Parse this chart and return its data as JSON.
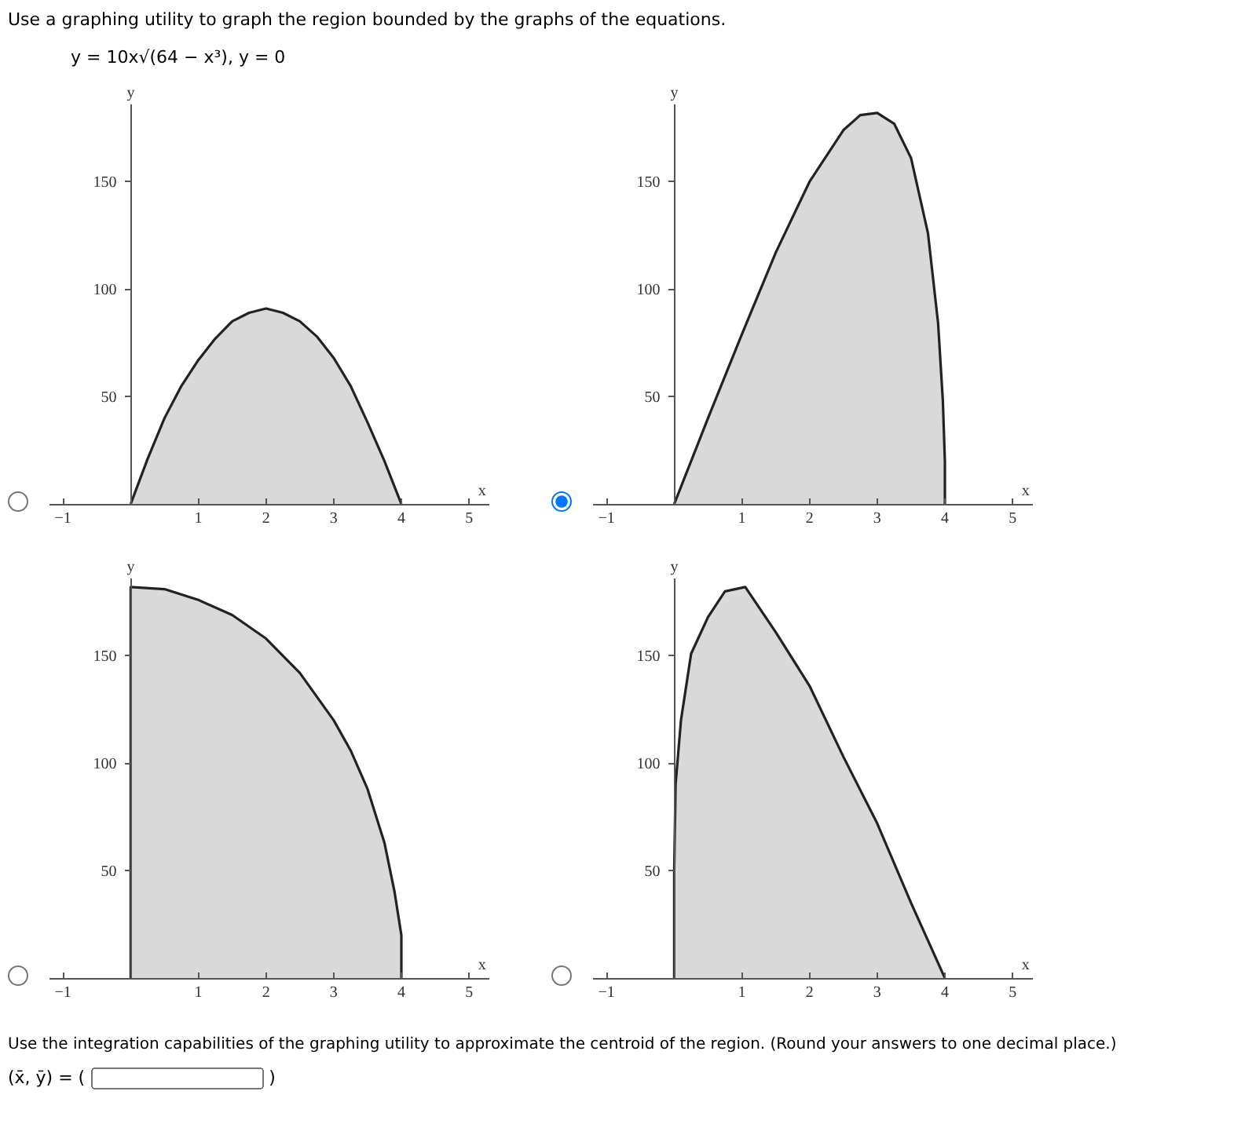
{
  "chart_data": [
    {
      "type": "area",
      "title": "Use a graphing utility to graph the region bounded by the graphs of the equations.",
      "subtitle": "y = 10x√(64 − x³), y = 0",
      "xlabel": "x",
      "ylabel": "y",
      "xlim": [
        -1.2,
        5.3
      ],
      "ylim": [
        0,
        186
      ],
      "xticks": [
        -1,
        1,
        2,
        3,
        4,
        5
      ],
      "yticks": [
        50,
        100,
        150
      ],
      "grid": false,
      "color": "#d9d9d9",
      "x": [
        0,
        0.25,
        0.5,
        0.75,
        1,
        1.25,
        1.5,
        1.75,
        2,
        2.25,
        2.5,
        2.75,
        3,
        3.25,
        3.5,
        3.75,
        4
      ],
      "values": [
        0,
        21,
        40,
        55,
        67,
        77,
        85,
        89,
        91,
        89,
        85,
        78,
        68,
        55,
        38,
        20,
        0
      ]
    },
    {
      "type": "area",
      "xlabel": "x",
      "ylabel": "y",
      "xlim": [
        -1.2,
        5.3
      ],
      "ylim": [
        0,
        186
      ],
      "xticks": [
        -1,
        1,
        2,
        3,
        4,
        5
      ],
      "yticks": [
        50,
        100,
        150
      ],
      "grid": false,
      "color": "#d9d9d9",
      "x": [
        0,
        0.5,
        1,
        1.5,
        2,
        2.5,
        2.75,
        3,
        3.25,
        3.5,
        3.75,
        3.9,
        3.97,
        4,
        4
      ],
      "values": [
        0,
        40,
        79,
        117,
        150,
        174,
        181,
        182,
        177,
        161,
        126,
        84,
        48,
        20,
        0
      ]
    },
    {
      "type": "area",
      "xlabel": "x",
      "ylabel": "y",
      "xlim": [
        -1.2,
        5.3
      ],
      "ylim": [
        0,
        186
      ],
      "xticks": [
        -1,
        1,
        2,
        3,
        4,
        5
      ],
      "yticks": [
        50,
        100,
        150
      ],
      "grid": false,
      "color": "#d9d9d9",
      "x": [
        0,
        0,
        0.5,
        1,
        1.5,
        2,
        2.5,
        3,
        3.25,
        3.5,
        3.75,
        3.9,
        4,
        4
      ],
      "values": [
        0,
        182,
        181,
        176,
        169,
        158,
        142,
        120,
        106,
        88,
        63,
        40,
        20,
        0
      ]
    },
    {
      "type": "area",
      "xlabel": "x",
      "ylabel": "y",
      "xlim": [
        -1.2,
        5.3
      ],
      "ylim": [
        0,
        186
      ],
      "xticks": [
        -1,
        1,
        2,
        3,
        4,
        5
      ],
      "yticks": [
        50,
        100,
        150
      ],
      "grid": false,
      "color": "#d9d9d9",
      "annotations": [
        "Use the integration capabilities of the graphing utility to approximate the centroid of the region. (Round your answers to one decimal place.)",
        "(x̄, ȳ) = (",
        ")"
      ],
      "x": [
        0,
        0,
        0.02,
        0.1,
        0.25,
        0.5,
        0.75,
        1.05,
        1.5,
        2,
        2.5,
        3,
        3.5,
        4
      ],
      "values": [
        0,
        50,
        90,
        120,
        151,
        168,
        180,
        182,
        161,
        136,
        103,
        72,
        35,
        0
      ]
    }
  ]
}
